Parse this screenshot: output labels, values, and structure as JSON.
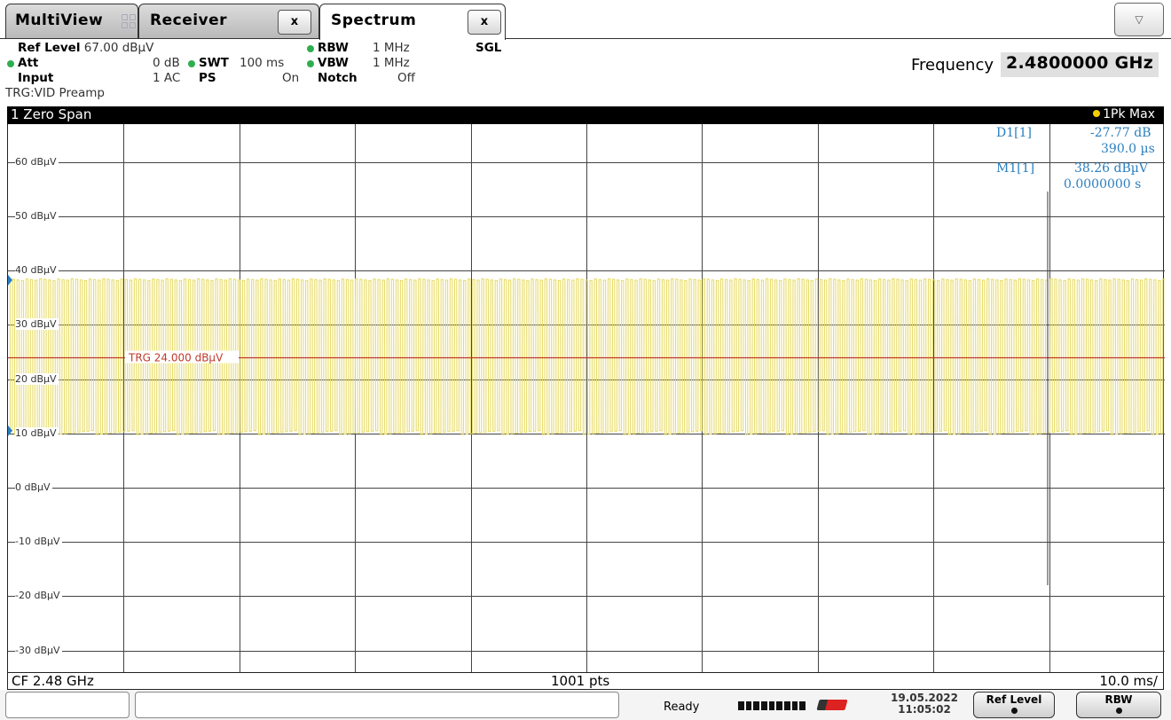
{
  "tabs": {
    "multiview": "MultiView",
    "receiver": "Receiver",
    "spectrum": "Spectrum",
    "close": "x",
    "menu_icon": "chevron-down-icon"
  },
  "settings": {
    "ref_level_label": "Ref Level",
    "ref_level_value": "67.00 dBµV",
    "att_label": "Att",
    "att_value": "0 dB",
    "swt_label": "SWT",
    "swt_value": "100 ms",
    "input_label": "Input",
    "input_value": "1 AC",
    "ps_label": "PS",
    "ps_value": "On",
    "rbw_label": "RBW",
    "rbw_value": "1 MHz",
    "vbw_label": "VBW",
    "vbw_value": "1 MHz",
    "notch_label": "Notch",
    "notch_value": "Off",
    "mode": "SGL",
    "trigger": "TRG:VID Preamp",
    "frequency_label": "Frequency",
    "frequency_value": "2.4800000 GHz",
    "indicator_color": "#2fae4f"
  },
  "plot": {
    "window_title": "1 Zero Span",
    "trace_label": "1Pk Max",
    "trace_color": "#e8dc6a",
    "trg_line_label": "TRG 24.000 dBµV",
    "trg_color": "#c0392b",
    "marker_d1_label": "D1[1]",
    "marker_d1_value": "-27.77 dB",
    "marker_d1_time": "390.0 µs",
    "marker_m1_label": "M1[1]",
    "marker_m1_value": "38.26 dBµV",
    "marker_m1_time": "0.0000000 s",
    "marker_color": "#2a7fc0",
    "cf": "CF 2.48 GHz",
    "points": "1001 pts",
    "time_div": "10.0 ms/"
  },
  "chart_data": {
    "type": "line",
    "title": "1 Zero Span",
    "xlabel": "",
    "ylabel": "",
    "ylim": [
      -34,
      67
    ],
    "x_unit": "s",
    "xlim": [
      0,
      0.1
    ],
    "y_ticks": [
      {
        "value": 60,
        "label": "60 dBµV"
      },
      {
        "value": 50,
        "label": "50 dBµV"
      },
      {
        "value": 40,
        "label": "40 dBµV"
      },
      {
        "value": 30,
        "label": "30 dBµV"
      },
      {
        "value": 20,
        "label": "20 dBµV"
      },
      {
        "value": 10,
        "label": "10 dBµV"
      },
      {
        "value": 0,
        "label": "0 dBµV"
      },
      {
        "value": -10,
        "label": "-10 dBµV"
      },
      {
        "value": -20,
        "label": "-20 dBµV"
      },
      {
        "value": -30,
        "label": "-30 dBµV"
      }
    ],
    "x_divisions": 10,
    "grid": true,
    "series": [
      {
        "name": "1Pk Max",
        "high": 38.5,
        "low": 10.5,
        "burst_period_s": 0.00039
      }
    ],
    "trigger_level": 24.0
  },
  "status": {
    "ready": "Ready",
    "date": "19.05.2022",
    "time": "11:05:02",
    "btn_ref_level": "Ref Level",
    "btn_rbw": "RBW"
  }
}
